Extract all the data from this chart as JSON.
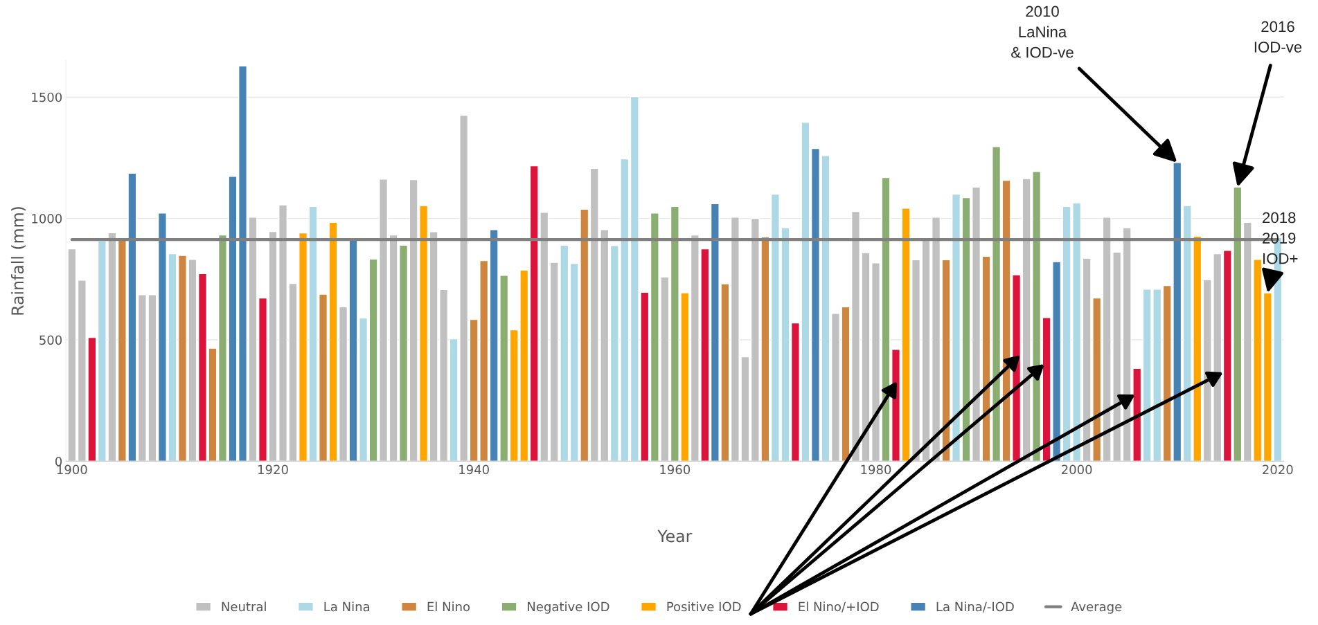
{
  "chart_data": {
    "type": "bar",
    "xlabel": "Year",
    "ylabel": "Rainfall (mm)",
    "xlim": [
      1899.4,
      2020.6
    ],
    "xticks": [
      1900,
      1920,
      1940,
      1960,
      1980,
      2000,
      2020
    ],
    "ylim": [
      0,
      1650
    ],
    "yticks": [
      0,
      500,
      1000,
      1500
    ],
    "grid": "y",
    "legend": "bottom",
    "series": [
      {
        "name": "Neutral",
        "color": "#c0c0c0",
        "x": [
          1900,
          1901,
          1904,
          1907,
          1908,
          1912,
          1918,
          1920,
          1921,
          1922,
          1927,
          1931,
          1932,
          1934,
          1936,
          1937,
          1939,
          1947,
          1948,
          1952,
          1953,
          1959,
          1962,
          1966,
          1967,
          1968,
          1976,
          1978,
          1979,
          1980,
          1984,
          1985,
          1986,
          1990,
          1995,
          2001,
          2003,
          2004,
          2005,
          2013,
          2014,
          2017
        ],
        "values": [
          875,
          746,
          941,
          686,
          686,
          831,
          1005,
          946,
          1056,
          732,
          636,
          1162,
          932,
          1160,
          945,
          707,
          1425,
          1025,
          819,
          1206,
          954,
          759,
          932,
          1005,
          430,
          1000,
          609,
          1029,
          859,
          817,
          830,
          915,
          1005,
          1129,
          1164,
          836,
          1005,
          861,
          962,
          748,
          855,
          984
        ]
      },
      {
        "name": "La Nina",
        "color": "#add8e6",
        "x": [
          1903,
          1910,
          1924,
          1929,
          1938,
          1949,
          1950,
          1954,
          1955,
          1956,
          1970,
          1971,
          1973,
          1975,
          1988,
          1999,
          2000,
          2007,
          2008,
          2011,
          2020
        ],
        "values": [
          908,
          855,
          1049,
          590,
          504,
          890,
          815,
          888,
          1245,
          1502,
          1100,
          962,
          1396,
          1259,
          1100,
          1049,
          1064,
          709,
          709,
          1053,
          921
        ]
      },
      {
        "name": "El Nino",
        "color": "#cd853f",
        "x": [
          1905,
          1911,
          1914,
          1925,
          1940,
          1941,
          1951,
          1965,
          1969,
          1977,
          1987,
          1991,
          1993,
          2002,
          2009
        ],
        "values": [
          910,
          848,
          466,
          688,
          584,
          826,
          1038,
          731,
          924,
          636,
          830,
          844,
          1157,
          672,
          724
        ]
      },
      {
        "name": "Negative IOD",
        "color": "#8aad72",
        "x": [
          1915,
          1930,
          1933,
          1943,
          1958,
          1960,
          1981,
          1989,
          1992,
          1996,
          2016
        ],
        "values": [
          932,
          833,
          890,
          766,
          1022,
          1049,
          1168,
          1086,
          1296,
          1193,
          1129
        ]
      },
      {
        "name": "Positive IOD",
        "color": "#ffa500",
        "x": [
          1923,
          1926,
          1935,
          1944,
          1945,
          1961,
          1983,
          2012,
          2018,
          2019
        ],
        "values": [
          940,
          984,
          1053,
          541,
          787,
          694,
          1042,
          927,
          831,
          693
        ]
      },
      {
        "name": "El Nino/+IOD",
        "color": "#dc143c",
        "x": [
          1902,
          1913,
          1919,
          1946,
          1957,
          1963,
          1972,
          1982,
          1994,
          1997,
          2006,
          2015
        ],
        "values": [
          510,
          773,
          672,
          1217,
          696,
          875,
          570,
          461,
          768,
          592,
          382,
          868
        ]
      },
      {
        "name": "La Nina/-IOD",
        "color": "#4682b4",
        "x": [
          1906,
          1909,
          1916,
          1917,
          1928,
          1942,
          1964,
          1974,
          1998,
          2010
        ],
        "values": [
          1186,
          1022,
          1173,
          1628,
          916,
          954,
          1061,
          1288,
          822,
          1230
        ]
      },
      {
        "name": "Average",
        "type": "line",
        "color": "#808080",
        "x": [
          1900,
          2020
        ],
        "values": [
          913,
          913
        ]
      }
    ],
    "annotations": [
      {
        "text": "2010\nLaNina\n& IOD-ve",
        "x": 2010,
        "y": 1230
      },
      {
        "text": "2016\nIOD-ve",
        "x": 2016,
        "y": 1129
      },
      {
        "text": "2018\n2019\nIOD+",
        "x": 2019,
        "y": 693
      }
    ]
  }
}
